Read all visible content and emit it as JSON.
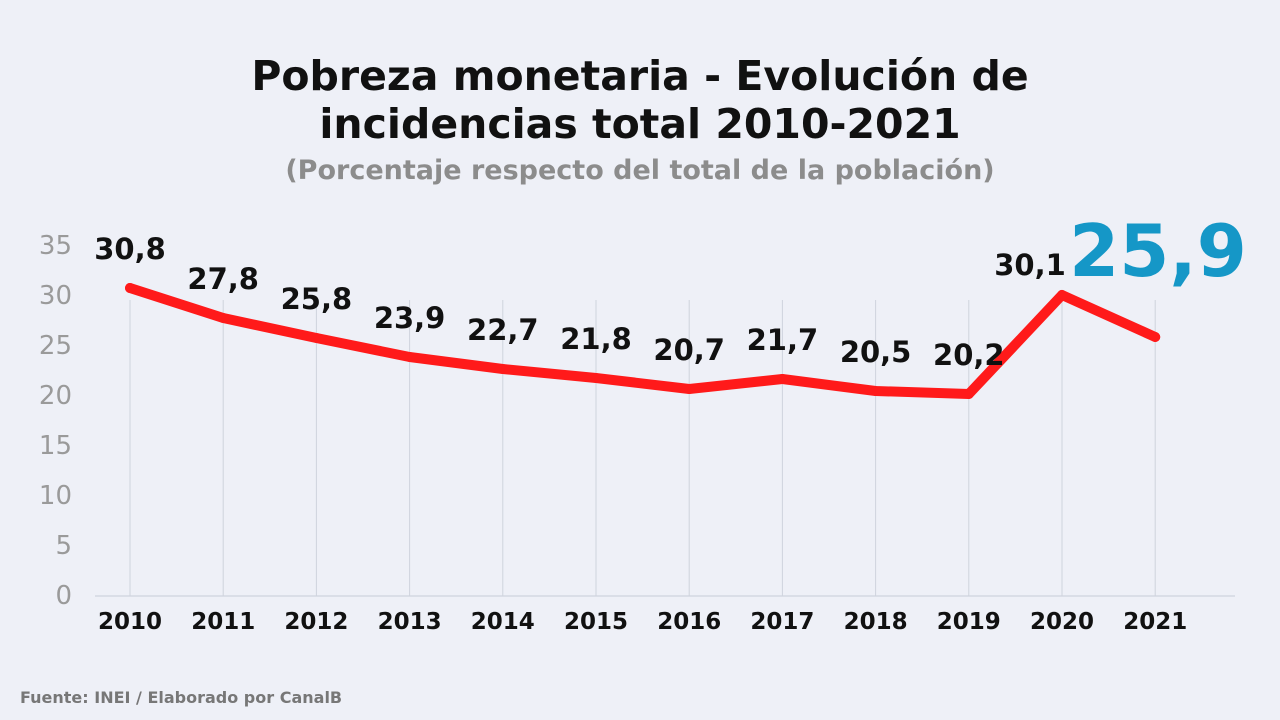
{
  "header": {
    "title_line1": "Pobreza monetaria - Evolución de",
    "title_line2": "incidencias total 2010-2021",
    "subtitle": "(Porcentaje respecto del total de la población)"
  },
  "source": "Fuente: INEI / Elaborado por CanalB",
  "colors": {
    "line": "#ff1a1a",
    "highlight": "#1597c7",
    "label": "#111111",
    "axis_text": "#9a9a9a",
    "grid": "#cfd3dd"
  },
  "chart_data": {
    "type": "line",
    "x": [
      "2010",
      "2011",
      "2012",
      "2013",
      "2014",
      "2015",
      "2016",
      "2017",
      "2018",
      "2019",
      "2020",
      "2021"
    ],
    "values": [
      30.8,
      27.8,
      25.8,
      23.9,
      22.7,
      21.8,
      20.7,
      21.7,
      20.5,
      20.2,
      30.1,
      25.9
    ],
    "labels": [
      "30,8",
      "27,8",
      "25,8",
      "23,9",
      "22,7",
      "21,8",
      "20,7",
      "21,7",
      "20,5",
      "20,2",
      "30,1",
      "25,9"
    ],
    "highlight_index": 11,
    "yticks": [
      "0",
      "5",
      "10",
      "15",
      "20",
      "25",
      "30",
      "35"
    ],
    "ylim": [
      0,
      35
    ],
    "grid": "vertical"
  }
}
